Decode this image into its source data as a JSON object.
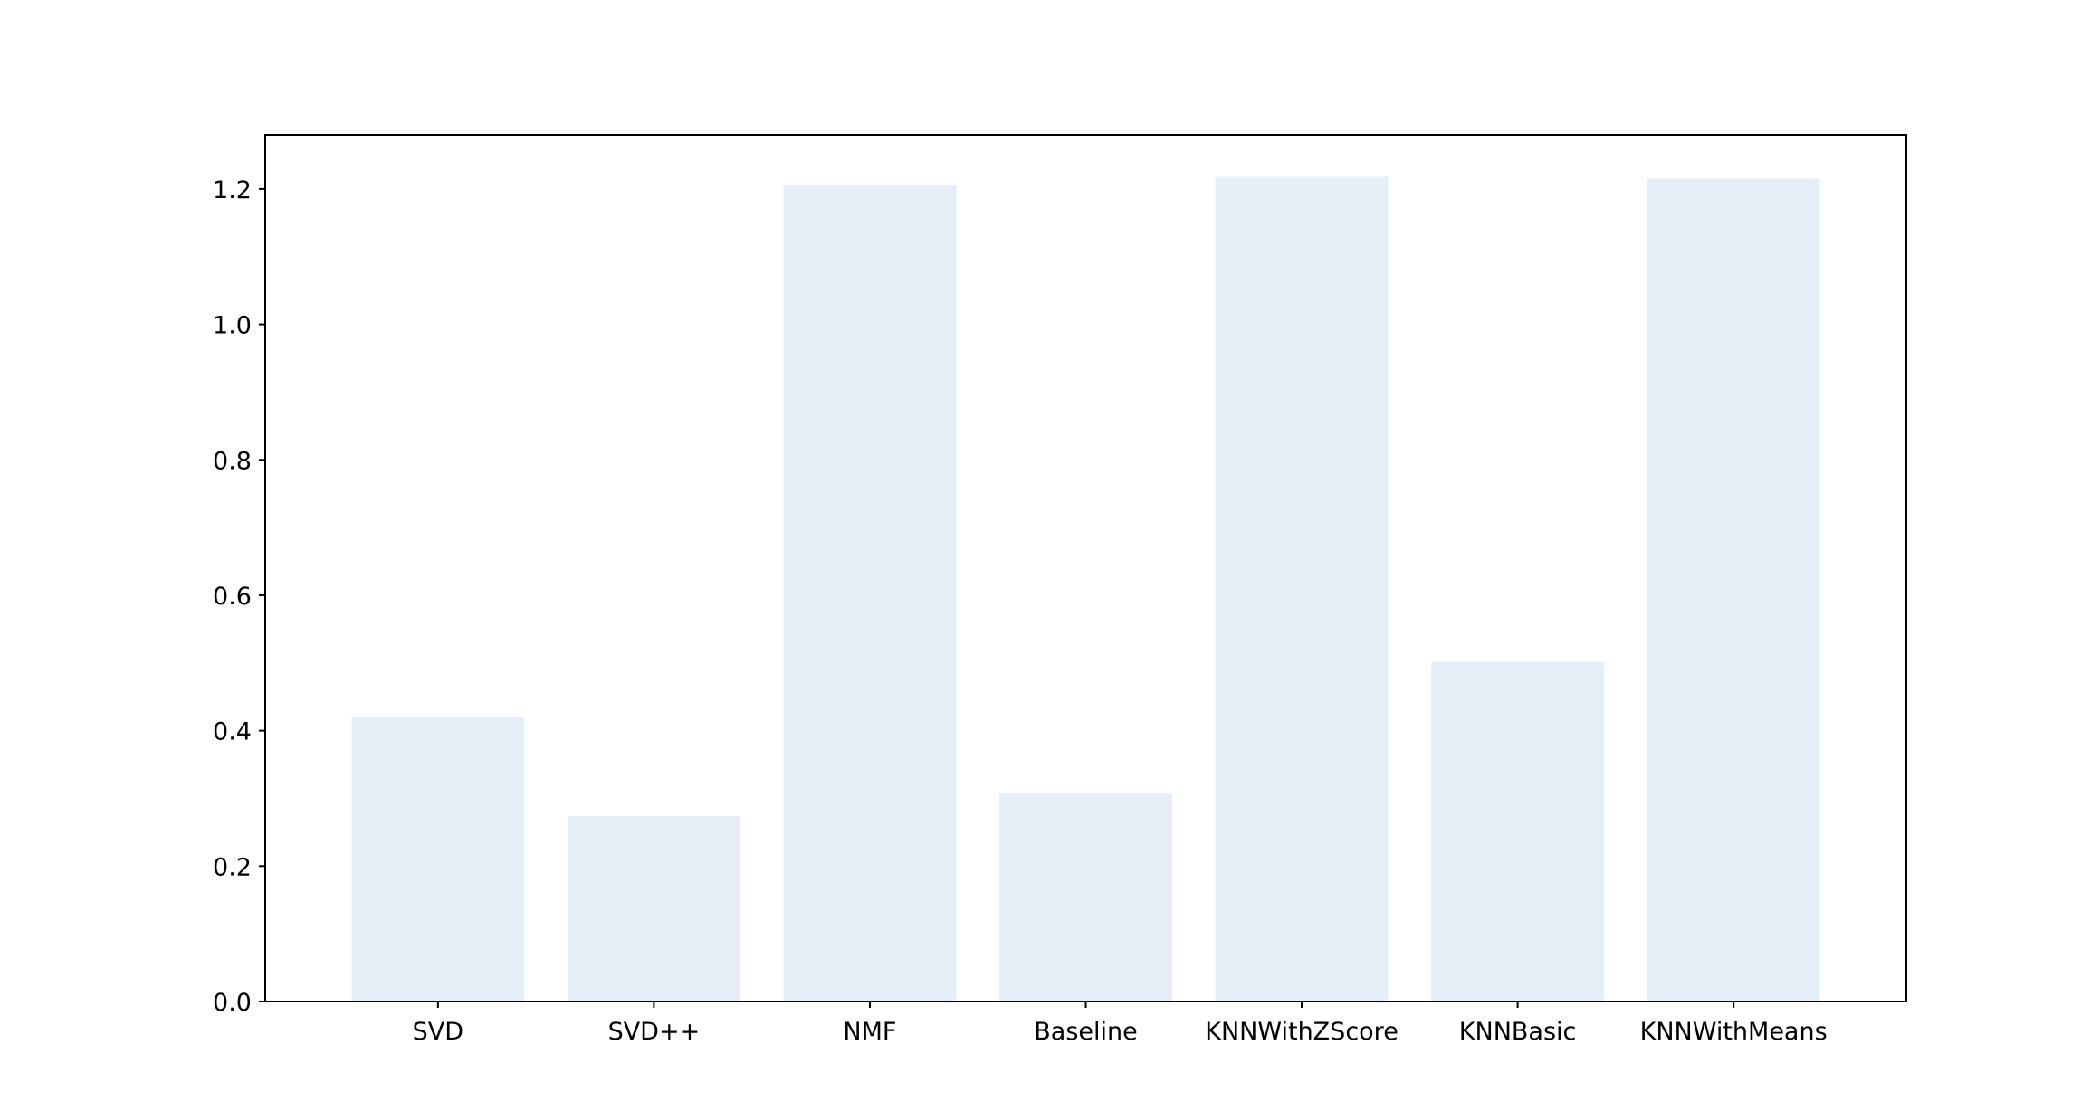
{
  "chart_data": {
    "type": "bar",
    "title": "",
    "xlabel": "",
    "ylabel": "",
    "categories": [
      "SVD",
      "SVD++",
      "NMF",
      "Baseline",
      "KNNWithZScore",
      "KNNBasic",
      "KNNWithMeans"
    ],
    "values": [
      0.42,
      0.274,
      1.206,
      0.308,
      1.218,
      0.502,
      1.215
    ],
    "ylim": [
      0,
      1.28
    ],
    "yticks": [
      0.0,
      0.2,
      0.4,
      0.6,
      0.8,
      1.0,
      1.2
    ],
    "ytick_labels": [
      "0.0",
      "0.2",
      "0.4",
      "0.6",
      "0.8",
      "1.0",
      "1.2"
    ],
    "bar_color": "#e6eff8",
    "grid": false,
    "legend": "none"
  }
}
